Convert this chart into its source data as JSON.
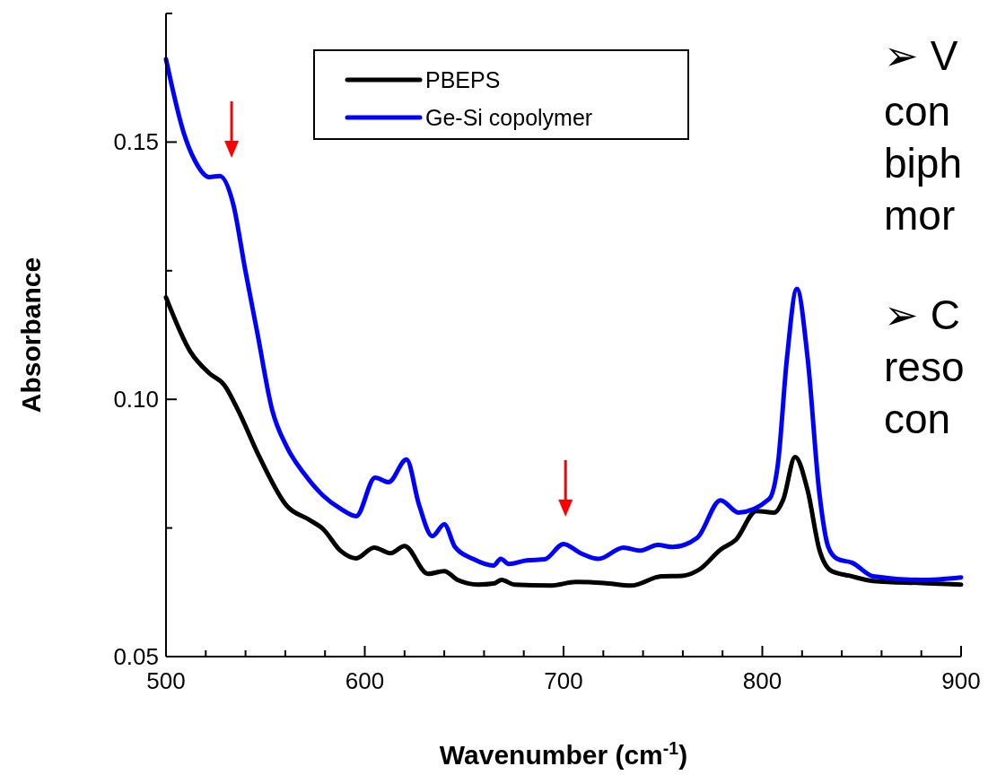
{
  "chart_data": {
    "type": "line",
    "xlabel": "Wavenumber (cm$^{-1}$)",
    "ylabel": "Absorbance",
    "xlim": [
      500,
      900
    ],
    "ylim": [
      0.05,
      0.175
    ],
    "xticks": [
      500,
      {
        "value": 520,
        "label": null
      },
      {
        "value": 540,
        "label": null
      },
      {
        "value": 560,
        "label": null
      },
      {
        "value": 580,
        "label": null
      },
      600,
      {
        "value": 620,
        "label": null
      },
      {
        "value": 640,
        "label": null
      },
      {
        "value": 660,
        "label": null
      },
      {
        "value": 680,
        "label": null
      },
      700,
      {
        "value": 720,
        "label": null
      },
      {
        "value": 740,
        "label": null
      },
      {
        "value": 760,
        "label": null
      },
      {
        "value": 780,
        "label": null
      },
      800,
      {
        "value": 820,
        "label": null
      },
      {
        "value": 840,
        "label": null
      },
      {
        "value": 860,
        "label": null
      },
      {
        "value": 880,
        "label": null
      },
      900
    ],
    "yticks": [
      {
        "value": 0.05,
        "label": "0.05"
      },
      {
        "value": 0.075,
        "label": null
      },
      {
        "value": 0.1,
        "label": "0.10"
      },
      {
        "value": 0.125,
        "label": null
      },
      {
        "value": 0.15,
        "label": "0.15"
      },
      {
        "value": 0.175,
        "label": null
      }
    ],
    "grid": false,
    "legend": "top",
    "marker": "none",
    "line_style": "solid",
    "annotations": [
      "➢ V",
      "con",
      "biph",
      "mor",
      "➢ C",
      "reso",
      "con"
    ],
    "series": [
      {
        "name": "PBEPS",
        "color": "#000000",
        "x": [
          500,
          512.2,
          521.7,
          529.3,
          536,
          547,
          561,
          572,
          579,
          588,
          595.7,
          604.7,
          612.9,
          620,
          631.8,
          640,
          646.7,
          657,
          664.8,
          668.8,
          675.2,
          693.2,
          706.3,
          720.3,
          733.9,
          749.2,
          759.6,
          768.6,
          779,
          786.7,
          797,
          806,
          810.6,
          816.5,
          822.8,
          828.7,
          835,
          844,
          855.8,
          880,
          900
        ],
        "values": [
          0.1198,
          0.1093,
          0.1051,
          0.1028,
          0.0981,
          0.0888,
          0.0792,
          0.0766,
          0.0748,
          0.0705,
          0.0691,
          0.0712,
          0.0701,
          0.0715,
          0.0661,
          0.0666,
          0.0649,
          0.064,
          0.0642,
          0.0649,
          0.064,
          0.0638,
          0.0645,
          0.0643,
          0.0638,
          0.0656,
          0.0657,
          0.067,
          0.0708,
          0.0727,
          0.0783,
          0.078,
          0.0806,
          0.0888,
          0.0823,
          0.0708,
          0.0666,
          0.0657,
          0.0647,
          0.0643,
          0.064
        ]
      },
      {
        "name": "Ge-Si copolymer",
        "color": "#0000ff",
        "x": [
          500,
          509,
          514.4,
          521.7,
          527,
          533.9,
          539.7,
          546,
          553.3,
          561,
          570,
          579,
          588,
          595.7,
          605.2,
          612,
          621,
          627.3,
          634,
          640,
          645.4,
          654.4,
          664.8,
          668.4,
          672.5,
          681.5,
          690.5,
          700,
          708.6,
          717.6,
          730.2,
          738.4,
          747.4,
          755,
          767.3,
          779,
          788,
          803.4,
          807.9,
          812.4,
          817.4,
          822.8,
          828.7,
          833.2,
          837.7,
          845.4,
          855.8,
          880.1,
          900
        ],
        "values": [
          0.1661,
          0.1517,
          0.1465,
          0.1432,
          0.1434,
          0.1378,
          0.1255,
          0.1128,
          0.0981,
          0.0906,
          0.0853,
          0.0813,
          0.0787,
          0.0773,
          0.0848,
          0.0839,
          0.0883,
          0.0795,
          0.0734,
          0.0757,
          0.0713,
          0.069,
          0.0677,
          0.069,
          0.068,
          0.0687,
          0.0689,
          0.0719,
          0.0701,
          0.069,
          0.0712,
          0.0706,
          0.0717,
          0.0713,
          0.0731,
          0.0804,
          0.078,
          0.0806,
          0.0876,
          0.108,
          0.1215,
          0.108,
          0.0818,
          0.0713,
          0.069,
          0.0682,
          0.0656,
          0.0649,
          0.0654
        ]
      }
    ]
  }
}
